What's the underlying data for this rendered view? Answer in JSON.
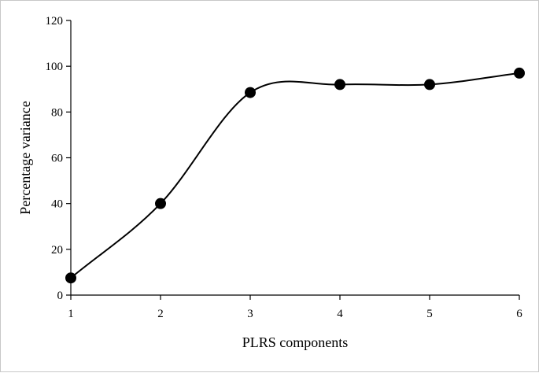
{
  "chart_data": {
    "type": "line",
    "title": "",
    "xlabel": "PLRS components",
    "ylabel": "Percentage variance",
    "x": [
      1,
      2,
      3,
      4,
      5,
      6
    ],
    "xticks": [
      "1",
      "2",
      "3",
      "4",
      "5",
      "6"
    ],
    "yticks": [
      "0",
      "20",
      "40",
      "60",
      "80",
      "100",
      "120"
    ],
    "xlim": [
      1,
      6
    ],
    "ylim": [
      0,
      120
    ],
    "grid": false,
    "legend": "none",
    "smooth": true,
    "series": [
      {
        "values": [
          7.5,
          40,
          88.5,
          92,
          92,
          97
        ]
      }
    ],
    "colors": {
      "line": "#000000",
      "marker": "#000000",
      "axis": "#000000",
      "frame": "#c8c8c8"
    }
  }
}
